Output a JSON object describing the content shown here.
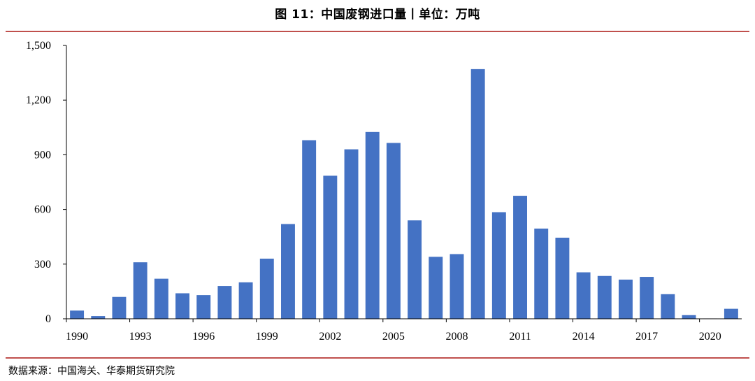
{
  "title": "图 11：中国废钢进口量丨单位：万吨",
  "source": "数据来源：中国海关、华泰期货研究院",
  "colors": {
    "bar": "#4472c4",
    "rule": "#c0504d",
    "axis": "#000000"
  },
  "chart_data": {
    "type": "bar",
    "title": "图 11：中国废钢进口量丨单位：万吨",
    "xlabel": "",
    "ylabel": "",
    "ylim": [
      0,
      1500
    ],
    "yticks": [
      0,
      300,
      600,
      900,
      1200,
      1500
    ],
    "ytick_labels": [
      "0",
      "300",
      "600",
      "900",
      "1,200",
      "1,500"
    ],
    "xtick_labels": [
      "1990",
      "1993",
      "1996",
      "1999",
      "2002",
      "2005",
      "2008",
      "2011",
      "2014",
      "2017",
      "2020"
    ],
    "categories": [
      "1990",
      "1991",
      "1992",
      "1993",
      "1994",
      "1995",
      "1996",
      "1997",
      "1998",
      "1999",
      "2000",
      "2001",
      "2002",
      "2003",
      "2004",
      "2005",
      "2006",
      "2007",
      "2008",
      "2009",
      "2010",
      "2011",
      "2012",
      "2013",
      "2014",
      "2015",
      "2016",
      "2017",
      "2018",
      "2019",
      "2020",
      "2021"
    ],
    "values": [
      45,
      15,
      120,
      310,
      220,
      140,
      130,
      180,
      200,
      330,
      520,
      980,
      785,
      930,
      1025,
      965,
      540,
      340,
      355,
      1370,
      585,
      675,
      495,
      445,
      255,
      235,
      215,
      230,
      135,
      20,
      2,
      55
    ],
    "grid": false,
    "legend": "none"
  }
}
